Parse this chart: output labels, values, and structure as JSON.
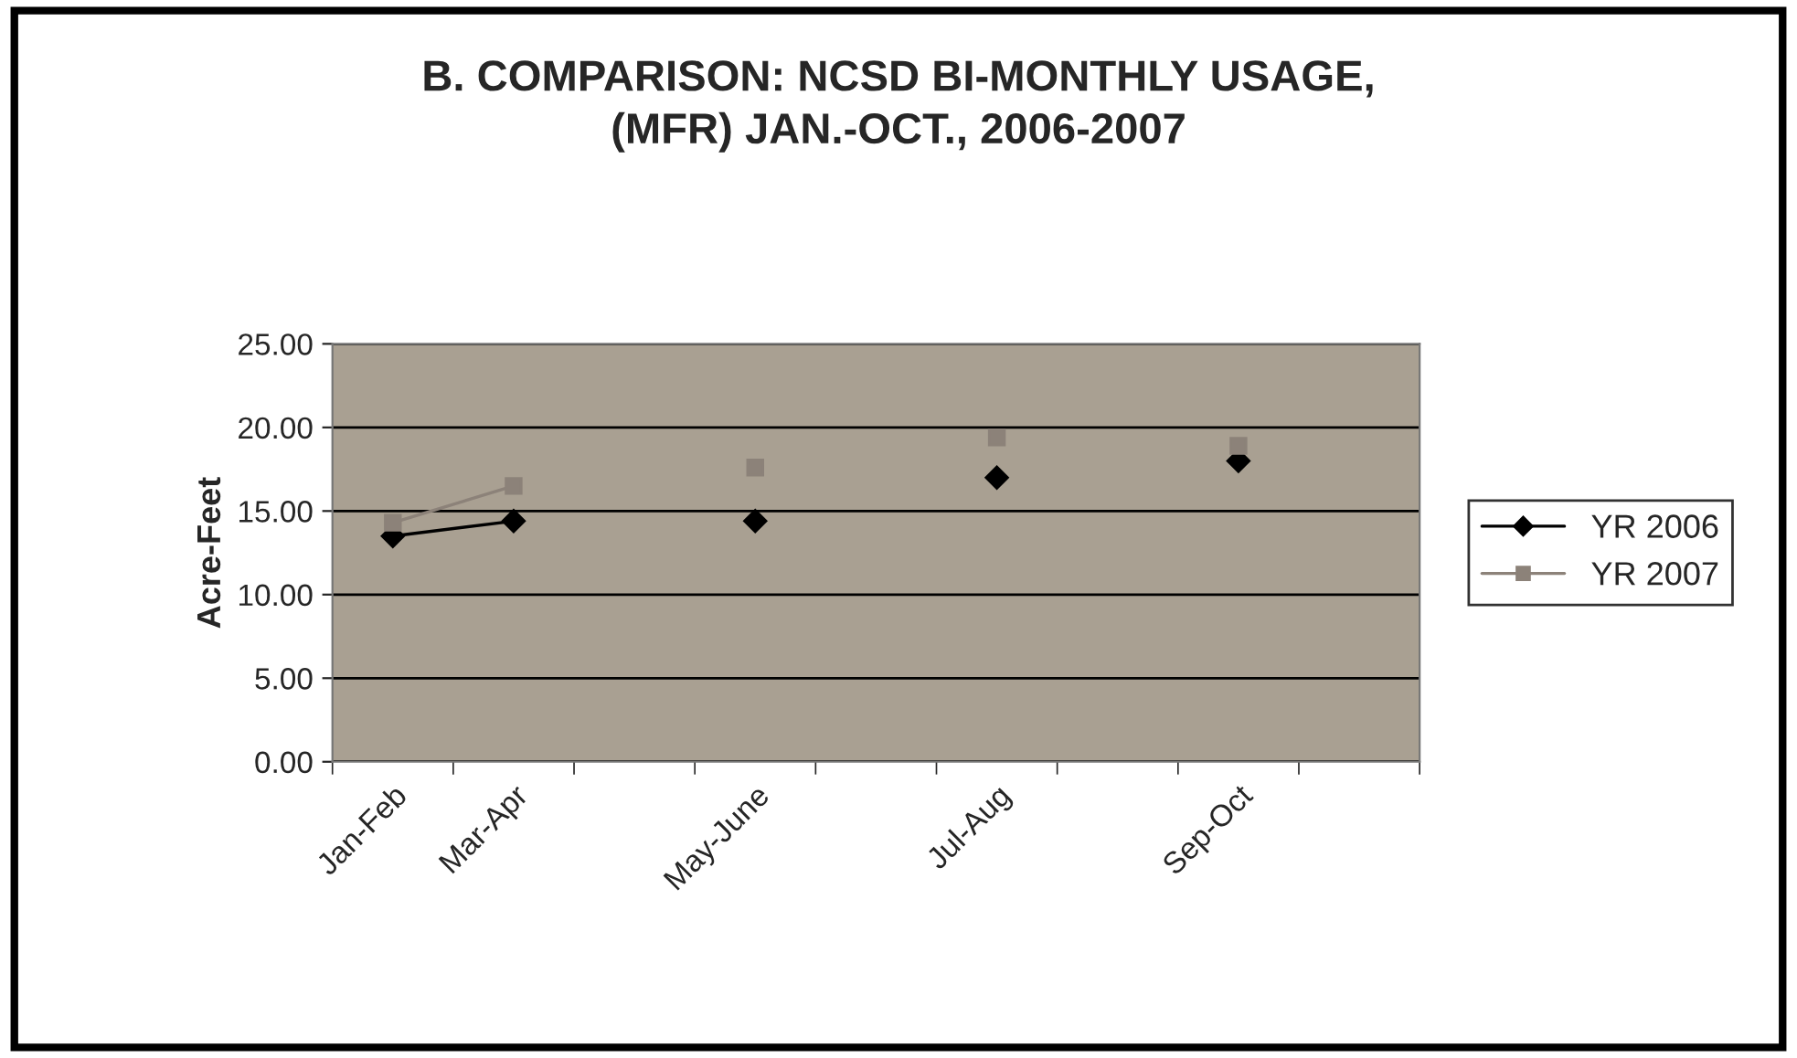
{
  "chart_data": {
    "type": "line",
    "title": "B. COMPARISON: NCSD BI-MONTHLY USAGE,\n(MFR) JAN.-OCT., 2006-2007",
    "ylabel": "Acre-Feet",
    "categories": [
      "Jan-Feb",
      "Mar-Apr",
      null,
      "May-June",
      null,
      "Jul-Aug",
      null,
      "Sep-Oct",
      null
    ],
    "series": [
      {
        "name": "YR 2006",
        "color": "#000000",
        "marker": "diamond",
        "values": [
          13.5,
          14.4,
          null,
          14.4,
          null,
          17.0,
          null,
          18.0,
          null
        ]
      },
      {
        "name": "YR 2007",
        "color": "#8c8279",
        "marker": "square",
        "values": [
          14.3,
          16.5,
          null,
          17.6,
          null,
          19.4,
          null,
          18.9,
          null
        ]
      }
    ],
    "ylim": [
      0,
      25
    ],
    "yticks": [
      {
        "value": 0,
        "label": "0.00"
      },
      {
        "value": 5,
        "label": "5.00"
      },
      {
        "value": 10,
        "label": "10.00"
      },
      {
        "value": 15,
        "label": "15.00"
      },
      {
        "value": 20,
        "label": "20.00"
      },
      {
        "value": 25,
        "label": "25.00"
      }
    ],
    "grid": "y",
    "legend": "right"
  }
}
